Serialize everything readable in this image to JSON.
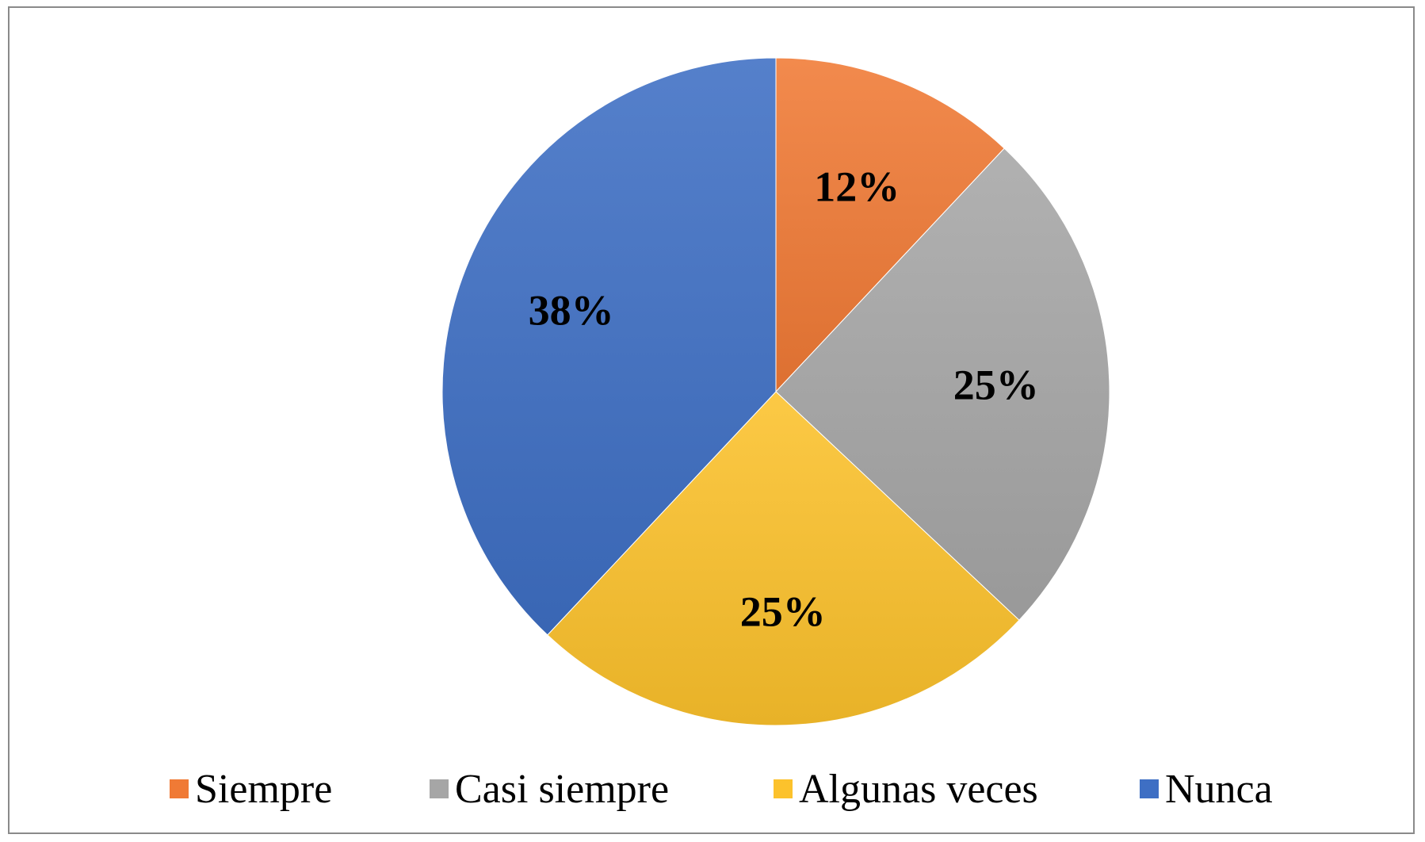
{
  "chart_data": {
    "type": "pie",
    "categories": [
      "Siempre",
      "Casi siempre",
      "Algunas veces",
      "Nunca"
    ],
    "values": [
      12,
      25,
      25,
      38
    ],
    "data_labels": [
      "12%",
      "25%",
      "25%",
      "38%"
    ],
    "colors": [
      "#F07A35",
      "#A6A6A6",
      "#FCC22C",
      "#3E6FC4"
    ],
    "legend_position": "bottom",
    "start_angle": "12 o'clock",
    "direction": "clockwise"
  }
}
